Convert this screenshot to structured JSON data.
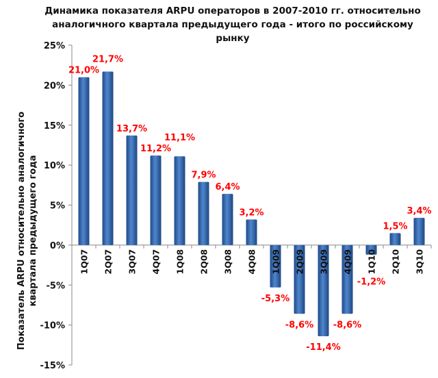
{
  "chart_data": {
    "type": "bar",
    "title": "Динамика показателя ARPU операторов в 2007-2010 гг. относительно аналогичного квартала предыдущего года - итого по российскому рынку",
    "xlabel": "",
    "ylabel": "Показатель ARPU относительно аналогичного квартала предыдущего года",
    "ylim": [
      -15,
      25
    ],
    "yticks": [
      -15,
      -10,
      -5,
      0,
      5,
      10,
      15,
      20,
      25
    ],
    "ytick_labels": [
      "-15%",
      "-10%",
      "-5%",
      "0%",
      "5%",
      "10%",
      "15%",
      "20%",
      "25%"
    ],
    "categories": [
      "1Q07",
      "2Q07",
      "3Q07",
      "4Q07",
      "1Q08",
      "2Q08",
      "3Q08",
      "4Q08",
      "1Q09",
      "2Q09",
      "3Q09",
      "4Q09",
      "1Q10",
      "2Q10",
      "3Q10"
    ],
    "values": [
      21.0,
      21.7,
      13.7,
      11.2,
      11.1,
      7.9,
      6.4,
      3.2,
      -5.3,
      -8.6,
      -11.4,
      -8.6,
      -1.2,
      1.5,
      3.4
    ],
    "data_labels": [
      "21,0%",
      "21,7%",
      "13,7%",
      "11,2%",
      "11,1%",
      "7,9%",
      "6,4%",
      "3,2%",
      "-5,3%",
      "-8,6%",
      "-11,4%",
      "-8,6%",
      "-1,2%",
      "1,5%",
      "3,4%"
    ],
    "bar_color": "#2f62a8",
    "label_color": "#ff0000",
    "grid": false
  }
}
